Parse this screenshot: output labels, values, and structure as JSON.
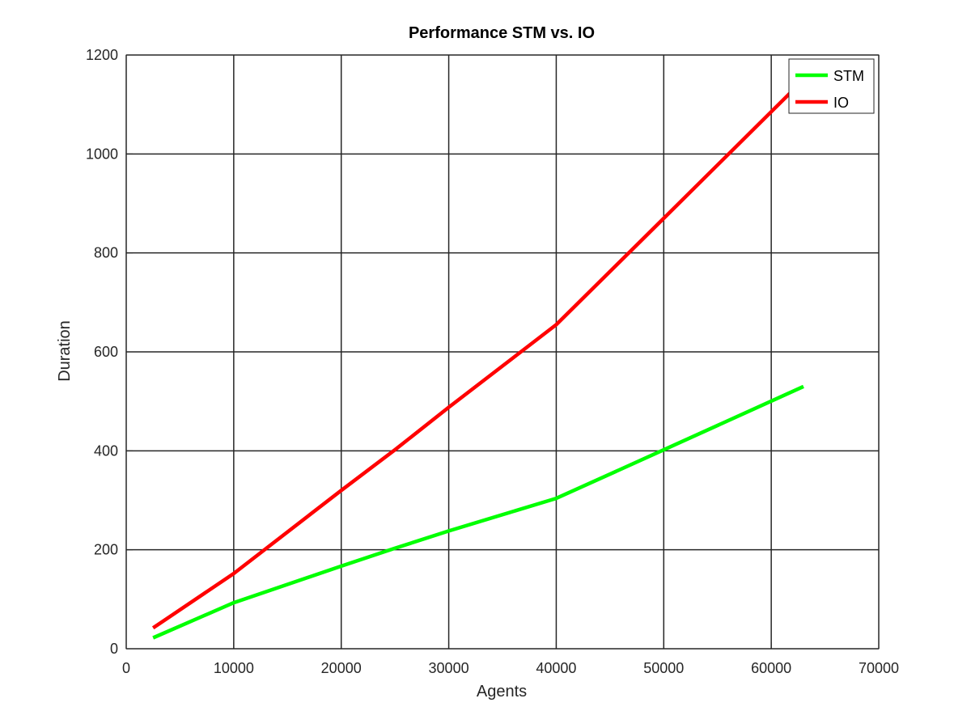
{
  "chart_data": {
    "type": "line",
    "title": "Performance STM vs. IO",
    "xlabel": "Agents",
    "ylabel": "Duration",
    "xlim": [
      0,
      70000
    ],
    "ylim": [
      0,
      1200
    ],
    "xticks": [
      0,
      10000,
      20000,
      30000,
      40000,
      50000,
      60000,
      70000
    ],
    "yticks": [
      0,
      200,
      400,
      600,
      800,
      1000,
      1200
    ],
    "xtick_labels": [
      "0",
      "10000",
      "20000",
      "30000",
      "40000",
      "50000",
      "60000",
      "70000"
    ],
    "ytick_labels": [
      "0",
      "200",
      "400",
      "600",
      "800",
      "1000",
      "1200"
    ],
    "grid": true,
    "legend_position": "top-right",
    "series": [
      {
        "name": "STM",
        "color": "#00ff00",
        "x": [
          2500,
          10000,
          20000,
          25000,
          30000,
          40000,
          50000,
          63000
        ],
        "y": [
          22,
          93,
          167,
          203,
          238,
          304,
          402,
          530
        ]
      },
      {
        "name": "IO",
        "color": "#ff0000",
        "x": [
          2500,
          10000,
          20000,
          25000,
          30000,
          40000,
          50000,
          63000
        ],
        "y": [
          42,
          152,
          320,
          402,
          488,
          655,
          870,
          1150
        ]
      }
    ]
  }
}
